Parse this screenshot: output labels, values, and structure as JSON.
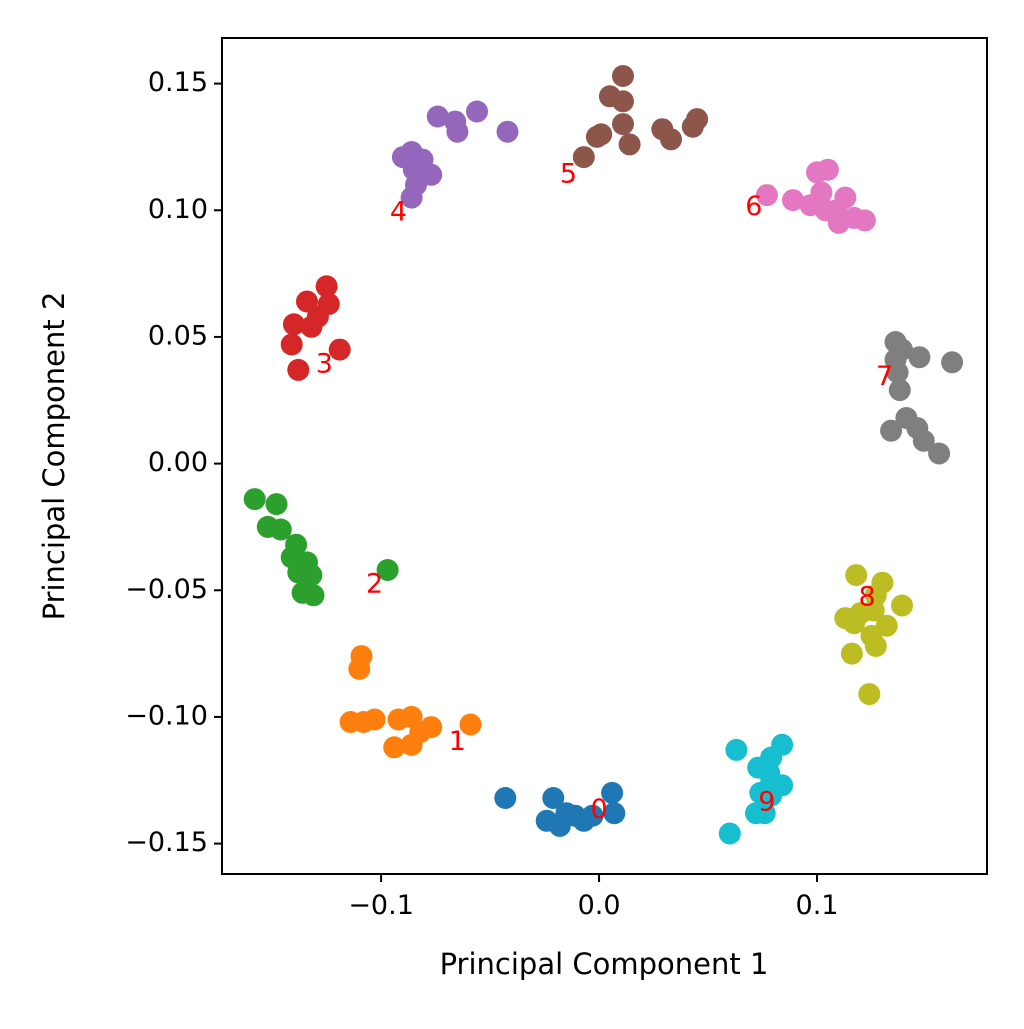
{
  "chart_data": {
    "type": "scatter",
    "title": "",
    "xlabel": "Principal Component 1",
    "ylabel": "Principal Component 2",
    "xlim": [
      -0.173,
      0.178
    ],
    "ylim": [
      -0.162,
      0.168
    ],
    "grid": false,
    "legend": "none",
    "xticks": [
      {
        "value": -0.1,
        "label": "−0.1"
      },
      {
        "value": 0.0,
        "label": "0.0"
      },
      {
        "value": 0.1,
        "label": "0.1"
      }
    ],
    "yticks": [
      {
        "value": 0.15,
        "label": "0.15"
      },
      {
        "value": 0.1,
        "label": "0.10"
      },
      {
        "value": 0.05,
        "label": "0.05"
      },
      {
        "value": 0.0,
        "label": "0.00"
      },
      {
        "value": -0.05,
        "label": "−0.05"
      },
      {
        "value": -0.1,
        "label": "−0.10"
      },
      {
        "value": -0.15,
        "label": "−0.15"
      }
    ],
    "annotation_color": "#ff0000",
    "series": [
      {
        "color": "#1f77b4",
        "label": "0",
        "label_at": [
          0.0,
          -0.137
        ],
        "points": [
          [
            -0.043,
            -0.132
          ],
          [
            -0.021,
            -0.132
          ],
          [
            -0.024,
            -0.141
          ],
          [
            -0.018,
            -0.143
          ],
          [
            -0.015,
            -0.138
          ],
          [
            -0.011,
            -0.139
          ],
          [
            -0.007,
            -0.141
          ],
          [
            -0.003,
            -0.139
          ],
          [
            0.006,
            -0.13
          ],
          [
            0.007,
            -0.138
          ]
        ]
      },
      {
        "color": "#ff7f0e",
        "label": "1",
        "label_at": [
          -0.065,
          -0.11
        ],
        "points": [
          [
            -0.109,
            -0.076
          ],
          [
            -0.11,
            -0.081
          ],
          [
            -0.114,
            -0.102
          ],
          [
            -0.108,
            -0.102
          ],
          [
            -0.103,
            -0.101
          ],
          [
            -0.092,
            -0.101
          ],
          [
            -0.086,
            -0.1
          ],
          [
            -0.094,
            -0.112
          ],
          [
            -0.086,
            -0.111
          ],
          [
            -0.082,
            -0.106
          ],
          [
            -0.077,
            -0.104
          ],
          [
            -0.059,
            -0.103
          ]
        ]
      },
      {
        "color": "#2ca02c",
        "label": "2",
        "label_at": [
          -0.103,
          -0.048
        ],
        "points": [
          [
            -0.158,
            -0.014
          ],
          [
            -0.148,
            -0.016
          ],
          [
            -0.152,
            -0.025
          ],
          [
            -0.146,
            -0.026
          ],
          [
            -0.139,
            -0.032
          ],
          [
            -0.141,
            -0.037
          ],
          [
            -0.134,
            -0.039
          ],
          [
            -0.138,
            -0.043
          ],
          [
            -0.132,
            -0.044
          ],
          [
            -0.136,
            -0.051
          ],
          [
            -0.131,
            -0.052
          ],
          [
            -0.097,
            -0.042
          ]
        ]
      },
      {
        "color": "#d62728",
        "label": "3",
        "label_at": [
          -0.126,
          0.039
        ],
        "points": [
          [
            -0.125,
            0.07
          ],
          [
            -0.134,
            0.064
          ],
          [
            -0.124,
            0.063
          ],
          [
            -0.129,
            0.058
          ],
          [
            -0.14,
            0.055
          ],
          [
            -0.132,
            0.054
          ],
          [
            -0.141,
            0.047
          ],
          [
            -0.119,
            0.045
          ],
          [
            -0.138,
            0.037
          ]
        ]
      },
      {
        "color": "#9467bd",
        "label": "4",
        "label_at": [
          -0.092,
          0.099
        ],
        "points": [
          [
            -0.074,
            0.137
          ],
          [
            -0.066,
            0.135
          ],
          [
            -0.056,
            0.139
          ],
          [
            -0.042,
            0.131
          ],
          [
            -0.065,
            0.131
          ],
          [
            -0.086,
            0.123
          ],
          [
            -0.09,
            0.121
          ],
          [
            -0.081,
            0.12
          ],
          [
            -0.085,
            0.116
          ],
          [
            -0.077,
            0.114
          ],
          [
            -0.084,
            0.11
          ],
          [
            -0.086,
            0.105
          ]
        ]
      },
      {
        "color": "#8c564b",
        "label": "5",
        "label_at": [
          -0.014,
          0.114
        ],
        "points": [
          [
            0.011,
            0.153
          ],
          [
            0.005,
            0.145
          ],
          [
            0.011,
            0.143
          ],
          [
            0.011,
            0.134
          ],
          [
            0.001,
            0.13
          ],
          [
            -0.001,
            0.129
          ],
          [
            0.014,
            0.126
          ],
          [
            -0.007,
            0.121
          ],
          [
            0.029,
            0.132
          ],
          [
            0.033,
            0.128
          ],
          [
            0.043,
            0.133
          ],
          [
            0.045,
            0.136
          ]
        ]
      },
      {
        "color": "#e377c2",
        "label": "6",
        "label_at": [
          0.071,
          0.101
        ],
        "points": [
          [
            0.077,
            0.106
          ],
          [
            0.089,
            0.104
          ],
          [
            0.097,
            0.102
          ],
          [
            0.1,
            0.115
          ],
          [
            0.105,
            0.116
          ],
          [
            0.102,
            0.107
          ],
          [
            0.104,
            0.1
          ],
          [
            0.109,
            0.1
          ],
          [
            0.113,
            0.105
          ],
          [
            0.11,
            0.095
          ],
          [
            0.117,
            0.097
          ],
          [
            0.122,
            0.096
          ]
        ]
      },
      {
        "color": "#7f7f7f",
        "label": "7",
        "label_at": [
          0.131,
          0.034
        ],
        "points": [
          [
            0.136,
            0.048
          ],
          [
            0.139,
            0.045
          ],
          [
            0.136,
            0.041
          ],
          [
            0.147,
            0.042
          ],
          [
            0.162,
            0.04
          ],
          [
            0.137,
            0.036
          ],
          [
            0.138,
            0.029
          ],
          [
            0.141,
            0.018
          ],
          [
            0.134,
            0.013
          ],
          [
            0.146,
            0.014
          ],
          [
            0.149,
            0.009
          ],
          [
            0.156,
            0.004
          ]
        ]
      },
      {
        "color": "#bcbd22",
        "label": "8",
        "label_at": [
          0.123,
          -0.053
        ],
        "points": [
          [
            0.118,
            -0.044
          ],
          [
            0.13,
            -0.047
          ],
          [
            0.127,
            -0.052
          ],
          [
            0.139,
            -0.056
          ],
          [
            0.126,
            -0.058
          ],
          [
            0.12,
            -0.059
          ],
          [
            0.113,
            -0.061
          ],
          [
            0.117,
            -0.063
          ],
          [
            0.132,
            -0.064
          ],
          [
            0.125,
            -0.068
          ],
          [
            0.127,
            -0.072
          ],
          [
            0.116,
            -0.075
          ],
          [
            0.124,
            -0.091
          ]
        ]
      },
      {
        "color": "#17becf",
        "label": "9",
        "label_at": [
          0.077,
          -0.134
        ],
        "points": [
          [
            0.063,
            -0.113
          ],
          [
            0.084,
            -0.111
          ],
          [
            0.079,
            -0.116
          ],
          [
            0.073,
            -0.12
          ],
          [
            0.078,
            -0.122
          ],
          [
            0.079,
            -0.126
          ],
          [
            0.084,
            -0.127
          ],
          [
            0.074,
            -0.13
          ],
          [
            0.079,
            -0.131
          ],
          [
            0.072,
            -0.138
          ],
          [
            0.076,
            -0.138
          ],
          [
            0.06,
            -0.146
          ]
        ]
      }
    ]
  }
}
